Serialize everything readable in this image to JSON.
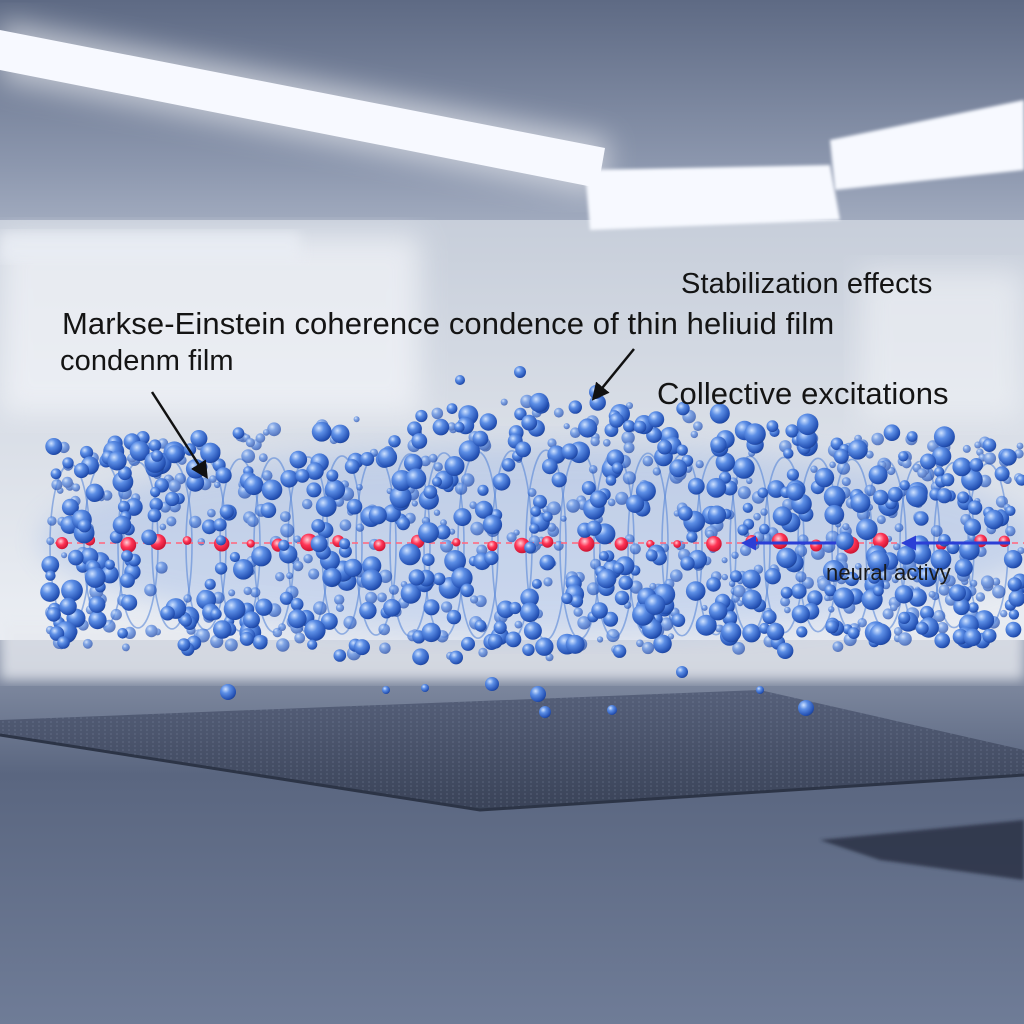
{
  "labels": {
    "stabilization_effects": "Stabilization effects",
    "bec_coherence": "Markse-Einstein coherence condence of thin heliuid film",
    "condensed_film": "condenm film",
    "collective_excitations": "Collective excitations",
    "neural_activity": "neural activy"
  },
  "colors": {
    "particle_blue": "#3b6fd1",
    "particle_highlight": "#9cc4ff",
    "excitation_red": "#ff2e4f",
    "wave_arrow_blue": "#2b3fd6",
    "ceiling_light": "#f7f9ff",
    "floor_dark": "#3f4a63",
    "wall": "#dfe3ec"
  }
}
